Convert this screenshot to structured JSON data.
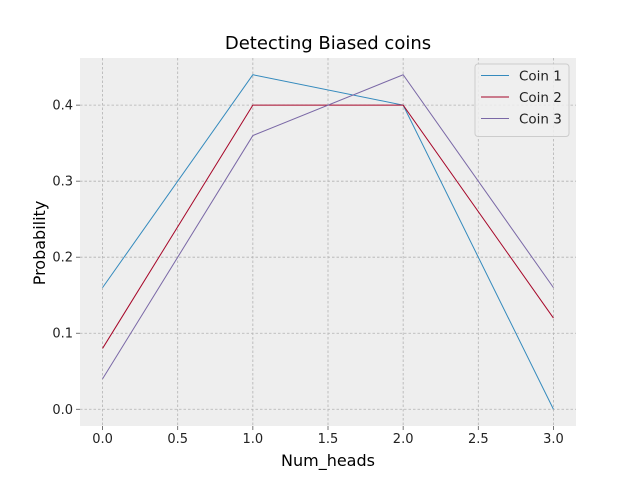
{
  "chart_data": {
    "type": "line",
    "title": "Detecting Biased coins",
    "xlabel": "Num_heads",
    "ylabel": "Probability",
    "xlim": [
      -0.15,
      3.15
    ],
    "ylim": [
      -0.022,
      0.462
    ],
    "xticks": [
      "0.0",
      "0.5",
      "1.0",
      "1.5",
      "2.0",
      "2.5",
      "3.0"
    ],
    "yticks": [
      "0.0",
      "0.1",
      "0.2",
      "0.3",
      "0.4"
    ],
    "x": [
      0,
      1,
      2,
      3
    ],
    "grid": true,
    "legend_position": "top-right",
    "series": [
      {
        "name": "Coin 1",
        "color": "#348abd",
        "values": [
          0.16,
          0.44,
          0.4,
          0.0
        ]
      },
      {
        "name": "Coin 2",
        "color": "#a60628",
        "values": [
          0.08,
          0.4,
          0.4,
          0.12
        ]
      },
      {
        "name": "Coin 3",
        "color": "#7a68a6",
        "values": [
          0.04,
          0.36,
          0.44,
          0.16
        ]
      }
    ],
    "plot_background": "#eeeeee",
    "grid_color": "#b2b2b2"
  }
}
